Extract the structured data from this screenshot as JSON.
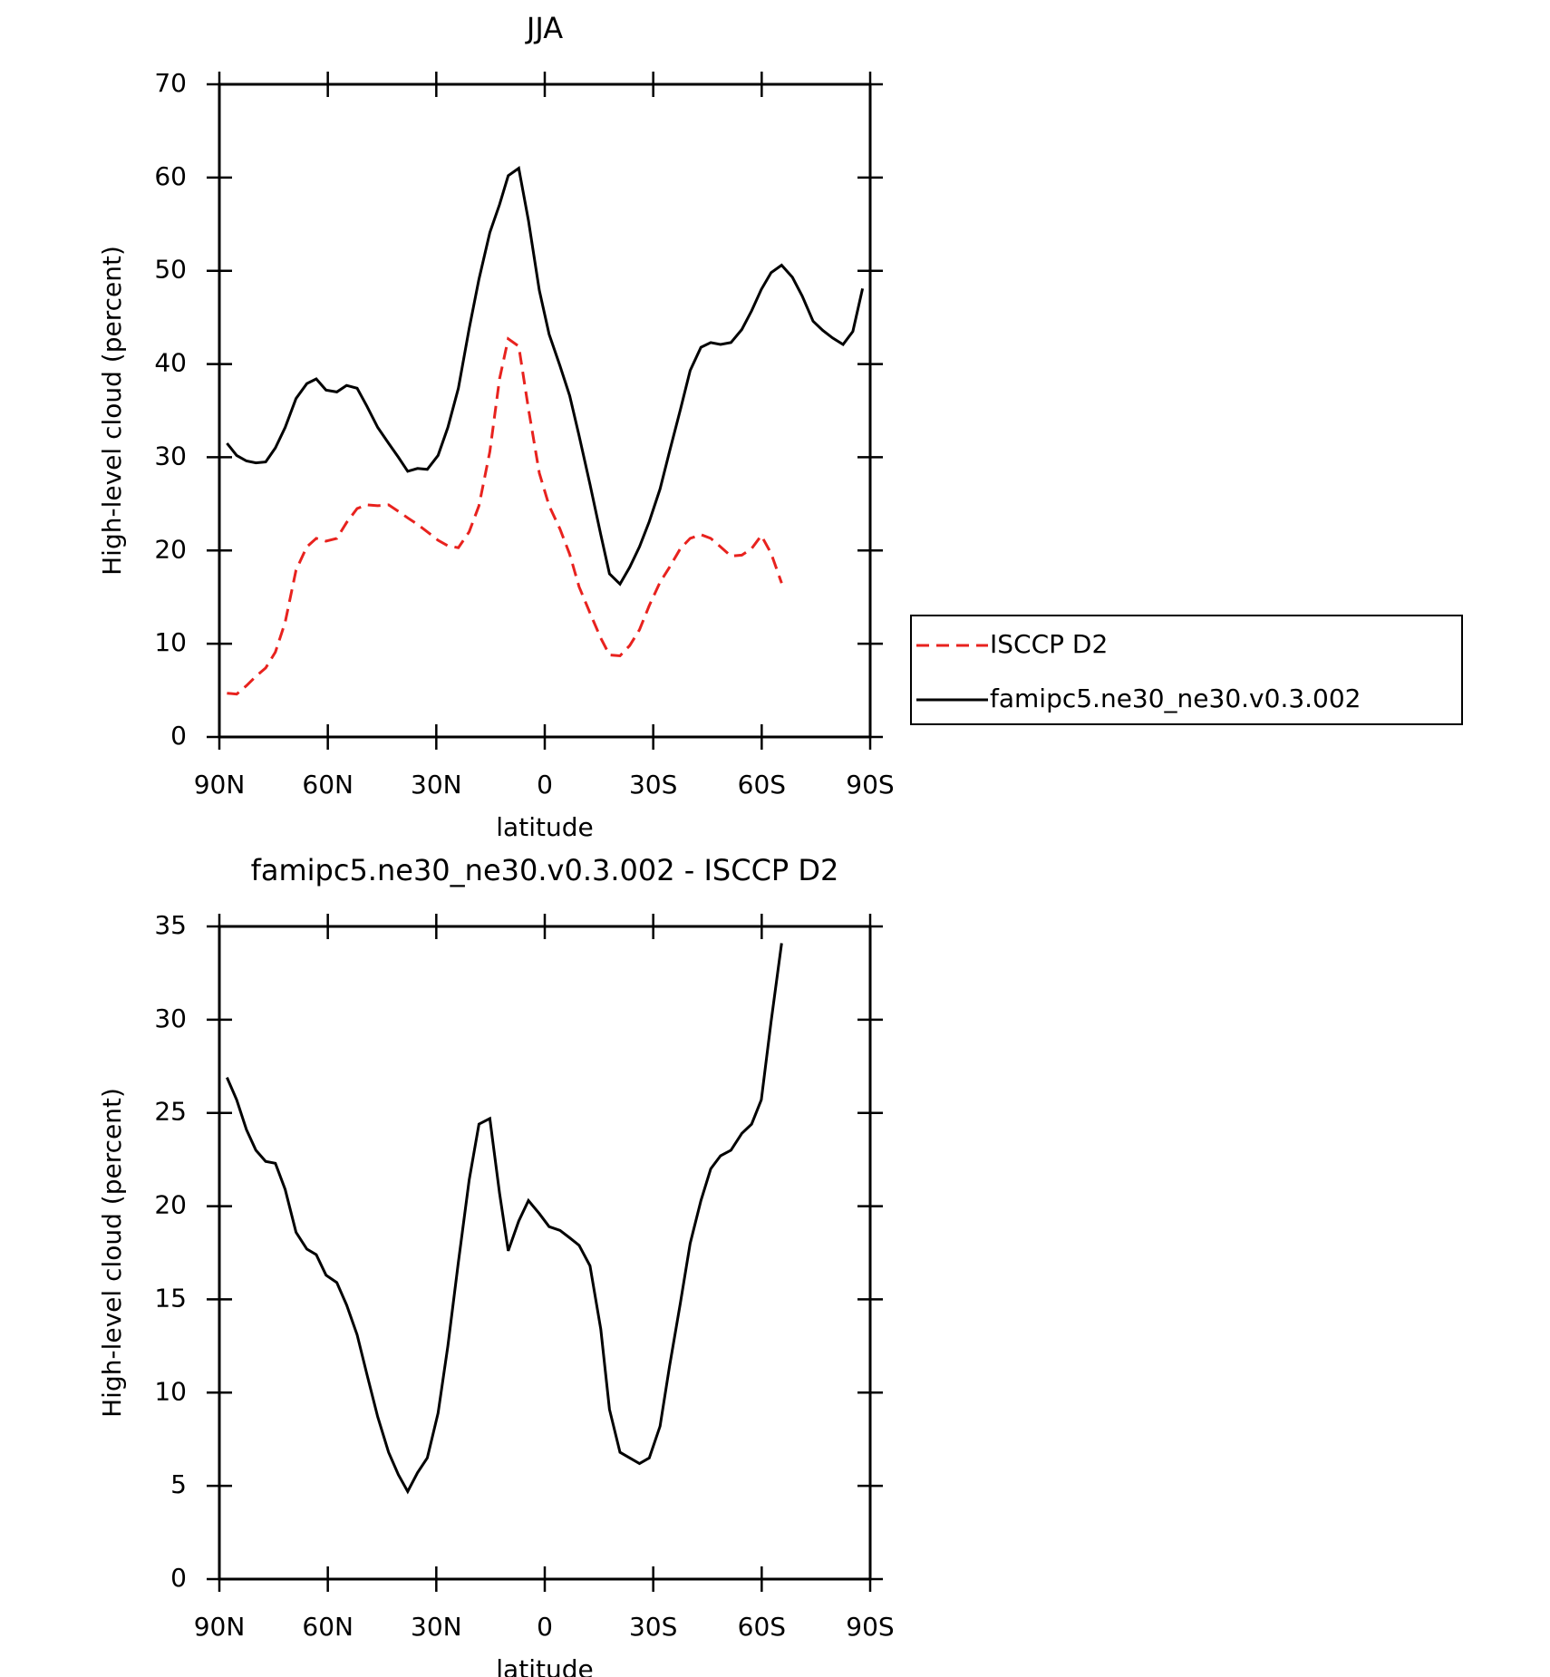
{
  "chart_data": [
    {
      "type": "line",
      "title": "JJA",
      "xlabel": "latitude",
      "ylabel": "High-level cloud (percent)",
      "xlim": [
        90,
        -90
      ],
      "xticks": [
        {
          "value": 90,
          "label": "90N"
        },
        {
          "value": 60,
          "label": "60N"
        },
        {
          "value": 30,
          "label": "30N"
        },
        0,
        {
          "value": -30,
          "label": "30S"
        },
        {
          "value": -60,
          "label": "60S"
        },
        {
          "value": -90,
          "label": "90S"
        }
      ],
      "ylim": [
        0,
        70
      ],
      "yticks": [
        0,
        10,
        20,
        30,
        40,
        50,
        60,
        70
      ],
      "legend": "right",
      "x": [
        87.9,
        85.2,
        82.5,
        79.9,
        77.2,
        74.5,
        71.8,
        68.8,
        65.8,
        63.2,
        60.5,
        57.5,
        54.8,
        51.9,
        49.2,
        46.2,
        43.2,
        40.5,
        37.9,
        35.2,
        32.5,
        29.5,
        26.8,
        23.9,
        20.9,
        18.2,
        15.2,
        12.5,
        10.1,
        7.2,
        4.5,
        1.5,
        -1.2,
        -4.2,
        -6.9,
        -9.5,
        -12.5,
        -15.5,
        -17.9,
        -20.8,
        -23.5,
        -26.2,
        -28.9,
        -31.9,
        -34.5,
        -37.5,
        -40.2,
        -43.2,
        -45.9,
        -48.6,
        -51.5,
        -54.5,
        -57.2,
        -59.9,
        -62.6,
        -65.5,
        -68.5,
        -71.2,
        -74.2,
        -76.9,
        -79.6,
        -82.5,
        -85.2,
        -87.9
      ],
      "series": [
        {
          "name": "ISCCP D2",
          "color": "#e8221e",
          "line_style": "dashed",
          "values": [
            4.7,
            4.6,
            5.5,
            6.5,
            7.4,
            9.1,
            12.3,
            17.9,
            20.4,
            21.3,
            21.0,
            21.3,
            23.0,
            24.5,
            24.9,
            24.8,
            24.9,
            24.2,
            23.5,
            22.8,
            22.0,
            21.1,
            20.5,
            20.3,
            22.0,
            24.8,
            30.6,
            38.4,
            42.7,
            41.9,
            35.2,
            28.3,
            24.8,
            22.3,
            19.6,
            16.1,
            13.3,
            10.6,
            8.8,
            8.7,
            9.8,
            11.5,
            14.1,
            16.6,
            18.2,
            20.2,
            21.3,
            21.7,
            21.3,
            20.4,
            19.4,
            19.5,
            20.2,
            21.6,
            19.7,
            16.5,
            null,
            null,
            null,
            null,
            null,
            null,
            null,
            null
          ]
        },
        {
          "name": "famipc5.ne30_ne30.v0.3.002",
          "color": "#000000",
          "line_style": "solid",
          "values": [
            31.5,
            30.2,
            29.6,
            29.4,
            29.5,
            31.0,
            33.2,
            36.3,
            37.9,
            38.4,
            37.2,
            37.0,
            37.7,
            37.4,
            35.5,
            33.2,
            31.5,
            30.0,
            28.5,
            28.8,
            28.7,
            30.2,
            33.2,
            37.4,
            43.8,
            49.1,
            54.1,
            57.1,
            60.2,
            61.0,
            55.4,
            47.9,
            43.2,
            39.8,
            36.6,
            32.3,
            27.1,
            21.7,
            17.5,
            16.4,
            18.2,
            20.4,
            23.1,
            26.6,
            30.6,
            35.1,
            39.3,
            41.8,
            42.3,
            42.1,
            42.3,
            43.7,
            45.7,
            48.0,
            49.8,
            50.6,
            49.3,
            47.3,
            44.6,
            43.6,
            42.8,
            42.1,
            43.5,
            48.1
          ]
        }
      ]
    },
    {
      "type": "line",
      "title": "famipc5.ne30_ne30.v0.3.002 - ISCCP D2",
      "xlabel": "latitude",
      "ylabel": "High-level cloud (percent)",
      "xlim": [
        90,
        -90
      ],
      "xticks": [
        {
          "value": 90,
          "label": "90N"
        },
        {
          "value": 60,
          "label": "60N"
        },
        {
          "value": 30,
          "label": "30N"
        },
        0,
        {
          "value": -30,
          "label": "30S"
        },
        {
          "value": -60,
          "label": "60S"
        },
        {
          "value": -90,
          "label": "90S"
        }
      ],
      "ylim": [
        0,
        35
      ],
      "yticks": [
        0,
        5,
        10,
        15,
        20,
        25,
        30,
        35
      ],
      "x": [
        87.9,
        85.2,
        82.5,
        79.9,
        77.2,
        74.5,
        71.8,
        68.8,
        65.8,
        63.2,
        60.5,
        57.5,
        54.8,
        51.9,
        49.2,
        46.2,
        43.2,
        40.5,
        37.9,
        35.2,
        32.5,
        29.5,
        26.8,
        23.9,
        20.9,
        18.2,
        15.2,
        12.5,
        10.1,
        7.2,
        4.5,
        1.5,
        -1.2,
        -4.2,
        -6.9,
        -9.5,
        -12.5,
        -15.5,
        -17.9,
        -20.8,
        -23.5,
        -26.2,
        -28.9,
        -31.9,
        -34.5,
        -37.5,
        -40.2,
        -43.2,
        -45.9,
        -48.6,
        -51.5,
        -54.5,
        -57.2,
        -59.9,
        -62.6,
        -65.5
      ],
      "series": [
        {
          "color": "#000000",
          "line_style": "solid",
          "values": [
            26.9,
            25.7,
            24.1,
            23.0,
            22.4,
            22.3,
            20.9,
            18.6,
            17.7,
            17.4,
            16.3,
            15.9,
            14.7,
            13.1,
            11.0,
            8.7,
            6.8,
            5.6,
            4.7,
            5.7,
            6.5,
            8.9,
            12.5,
            17.0,
            21.4,
            24.4,
            24.7,
            20.7,
            17.6,
            19.2,
            20.3,
            19.6,
            18.9,
            18.7,
            18.3,
            17.9,
            16.8,
            13.4,
            9.1,
            6.8,
            6.5,
            6.2,
            6.5,
            8.2,
            11.4,
            14.8,
            18.0,
            20.3,
            22.0,
            22.7,
            23.0,
            23.9,
            24.4,
            25.7,
            29.9,
            34.1
          ]
        }
      ]
    }
  ]
}
